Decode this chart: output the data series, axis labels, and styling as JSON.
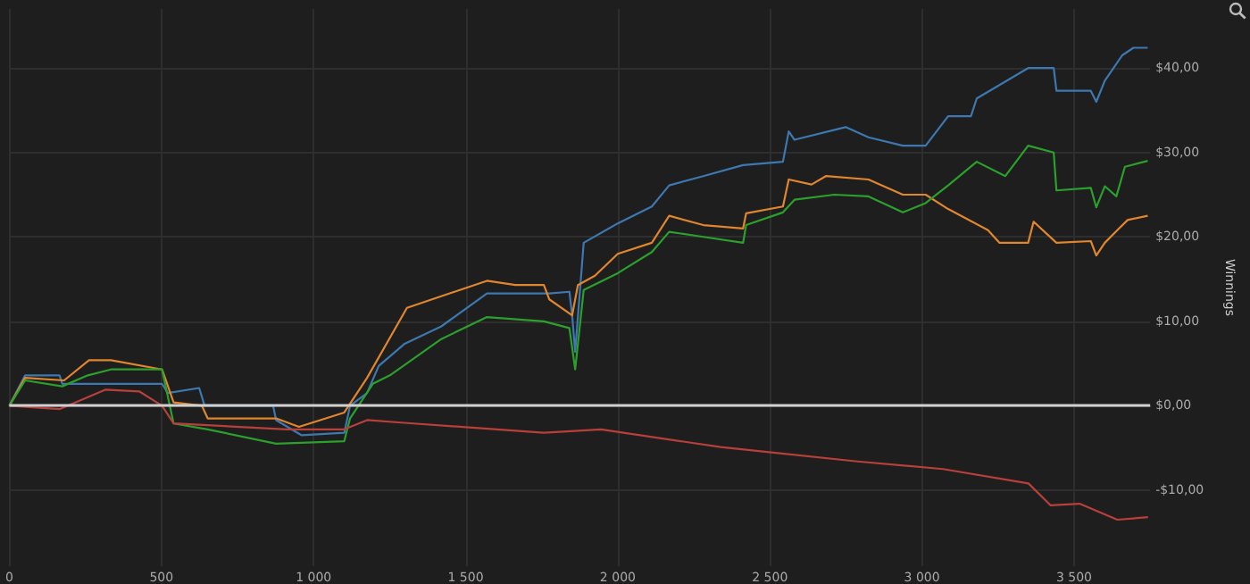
{
  "chart_data": {
    "type": "line",
    "ylabel": "Winnings",
    "xlim": [
      0,
      3750
    ],
    "ylim": [
      -19,
      47
    ],
    "xticks": [
      0,
      500,
      {
        "value": 1000,
        "label": "1 000"
      },
      {
        "value": 1500,
        "label": "1 500"
      },
      {
        "value": 2000,
        "label": "2 000"
      },
      {
        "value": 2500,
        "label": "2 500"
      },
      {
        "value": 3000,
        "label": "3 000"
      },
      {
        "value": 3500,
        "label": "3 500"
      }
    ],
    "yticks": [
      {
        "value": -10,
        "label": "-$10,00"
      },
      {
        "value": 0,
        "label": "$0,00"
      },
      {
        "value": 10,
        "label": "$10,00"
      },
      {
        "value": 20,
        "label": "$20,00"
      },
      {
        "value": 30,
        "label": "$30,00"
      },
      {
        "value": 40,
        "label": "$40,00"
      }
    ],
    "grid": true,
    "marker": "none",
    "line_style": "solid",
    "ref_lines": [
      {
        "axis": "y",
        "value": 0,
        "color": "#d0d0d0"
      }
    ],
    "series": [
      {
        "color": "#3d78b0",
        "x": [
          0,
          52,
          165,
          174,
          502,
          521,
          624,
          642,
          867,
          877,
          961,
          1101,
          1120,
          1176,
          1214,
          1298,
          1420,
          1570,
          1775,
          1841,
          1850,
          1860,
          1888,
          2000,
          2112,
          2169,
          2281,
          2412,
          2543,
          2562,
          2581,
          2749,
          2824,
          2937,
          3012,
          3086,
          3161,
          3180,
          3349,
          3433,
          3442,
          3555,
          3573,
          3601,
          3658,
          3695,
          3742
        ],
        "values": [
          0,
          3.6,
          3.6,
          2.6,
          2.6,
          1.5,
          2.1,
          0,
          0,
          -1.7,
          -3.5,
          -3.2,
          0,
          1.5,
          4.7,
          7.3,
          9.4,
          13.3,
          13.3,
          13.5,
          10.7,
          6.4,
          19.3,
          21.6,
          23.6,
          26.1,
          27.2,
          28.5,
          28.9,
          32.5,
          31.5,
          33,
          31.8,
          30.8,
          30.8,
          34.3,
          34.3,
          36.4,
          40,
          40,
          37.3,
          37.3,
          36,
          38.5,
          41.5,
          42.4,
          42.4
        ]
      },
      {
        "color": "#e0862e",
        "x": [
          0,
          52,
          180,
          262,
          334,
          502,
          540,
          633,
          652,
          877,
          952,
          1101,
          1176,
          1307,
          1570,
          1663,
          1757,
          1775,
          1850,
          1869,
          1925,
          2000,
          2112,
          2169,
          2281,
          2412,
          2422,
          2543,
          2562,
          2637,
          2684,
          2824,
          2937,
          3012,
          3086,
          3217,
          3255,
          3349,
          3367,
          3442,
          3555,
          3573,
          3601,
          3648,
          3676,
          3742
        ],
        "values": [
          0,
          3.3,
          3,
          5.4,
          5.4,
          4.3,
          0.4,
          0,
          -1.5,
          -1.5,
          -2.5,
          -0.8,
          3.3,
          11.6,
          14.8,
          14.3,
          14.3,
          12.6,
          10.7,
          14.3,
          15.4,
          18,
          19.3,
          22.5,
          21.4,
          21,
          22.8,
          23.6,
          26.8,
          26.2,
          27.2,
          26.8,
          25,
          25,
          23.3,
          20.8,
          19.3,
          19.3,
          21.8,
          19.3,
          19.5,
          17.8,
          19.3,
          21,
          22,
          22.5
        ]
      },
      {
        "color": "#2ca02c",
        "x": [
          0,
          52,
          174,
          258,
          334,
          502,
          540,
          652,
          877,
          1101,
          1120,
          1195,
          1251,
          1420,
          1570,
          1757,
          1841,
          1860,
          1888,
          2000,
          2112,
          2169,
          2281,
          2412,
          2422,
          2543,
          2581,
          2712,
          2824,
          2937,
          3012,
          3086,
          3180,
          3274,
          3349,
          3433,
          3442,
          3555,
          3573,
          3601,
          3639,
          3667,
          3742
        ],
        "values": [
          0,
          3,
          2.3,
          3.6,
          4.3,
          4.3,
          -2.1,
          -2.8,
          -4.5,
          -4.2,
          -1.5,
          2.6,
          3.6,
          7.9,
          10.5,
          10,
          9.2,
          4.3,
          13.7,
          15.7,
          18.2,
          20.6,
          20,
          19.3,
          21.4,
          22.9,
          24.4,
          25,
          24.8,
          22.9,
          24,
          26.1,
          28.9,
          27.2,
          30.8,
          30,
          25.5,
          25.8,
          23.5,
          26,
          24.8,
          28.3,
          29
        ]
      },
      {
        "color": "#b8403b",
        "x": [
          0,
          165,
          315,
          427,
          502,
          540,
          914,
          1101,
          1176,
          1288,
          1757,
          1945,
          2338,
          2788,
          3069,
          3350,
          3423,
          3518,
          3642,
          3743
        ],
        "values": [
          0,
          -0.4,
          1.9,
          1.7,
          0,
          -2.1,
          -2.8,
          -2.8,
          -1.7,
          -2,
          -3.2,
          -2.8,
          -4.9,
          -6.6,
          -7.5,
          -9.2,
          -11.8,
          -11.6,
          -13.5,
          -13.2
        ]
      }
    ]
  }
}
